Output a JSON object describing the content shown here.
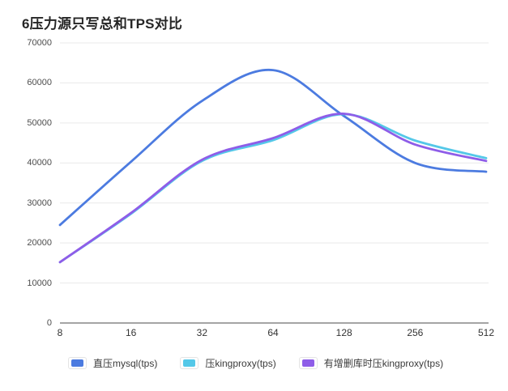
{
  "title": "6压力源只写总和TPS对比",
  "chart_data": {
    "type": "line",
    "title": "6压力源只写总和TPS对比",
    "smooth": true,
    "grid": true,
    "legend_position": "bottom",
    "x_axis": {
      "scale": "log2",
      "categories": [
        "8",
        "16",
        "32",
        "64",
        "128",
        "256",
        "512"
      ]
    },
    "y_axis": {
      "min": 0,
      "max": 70000,
      "tick_step": 10000,
      "tick_labels": [
        "0",
        "10000",
        "20000",
        "30000",
        "40000",
        "50000",
        "60000",
        "70000"
      ]
    },
    "series": [
      {
        "name": "直压mysql(tps)",
        "color": "#4c7be0",
        "values": [
          24500,
          40300,
          55500,
          63200,
          51700,
          40000,
          37800
        ]
      },
      {
        "name": "压kingproxy(tps)",
        "color": "#54c8e8",
        "values": [
          15200,
          27300,
          40500,
          45700,
          52200,
          45600,
          41200
        ]
      },
      {
        "name": "有增删库时压kingproxy(tps)",
        "color": "#8e5de8",
        "values": [
          15200,
          27500,
          40800,
          46200,
          52300,
          44600,
          40500
        ]
      }
    ]
  },
  "colors": {
    "gridline": "#e9e9e9",
    "axis_line": "#4a4a4a",
    "title_text": "#262626",
    "y_label_text": "#4d4d4d",
    "x_label_text": "#333333"
  }
}
